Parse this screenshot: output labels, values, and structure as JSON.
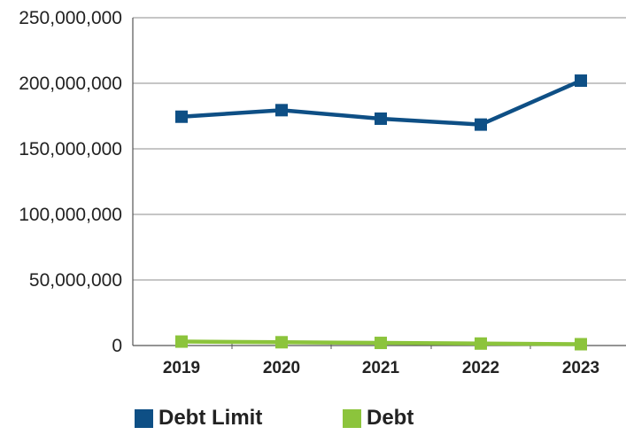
{
  "chart_data": {
    "type": "line",
    "title": "",
    "xlabel": "",
    "ylabel": "",
    "categories": [
      "2019",
      "2020",
      "2021",
      "2022",
      "2023"
    ],
    "ylim": [
      0,
      250000000
    ],
    "yticks": [
      {
        "value": 0,
        "label": "0"
      },
      {
        "value": 50000000,
        "label": "50,000,000"
      },
      {
        "value": 100000000,
        "label": "100,000,000"
      },
      {
        "value": 150000000,
        "label": "150,000,000"
      },
      {
        "value": 200000000,
        "label": "200,000,000"
      },
      {
        "value": 250000000,
        "label": "250,000,000"
      }
    ],
    "grid": true,
    "legend_position": "bottom",
    "series": [
      {
        "name": "Debt Limit",
        "color": "#0e4f85",
        "marker": "square",
        "values": [
          174500000,
          179500000,
          173000000,
          168500000,
          202000000
        ]
      },
      {
        "name": "Debt",
        "color": "#8cc43c",
        "marker": "square",
        "values": [
          3000000,
          2500000,
          2000000,
          1500000,
          1000000
        ]
      }
    ]
  }
}
